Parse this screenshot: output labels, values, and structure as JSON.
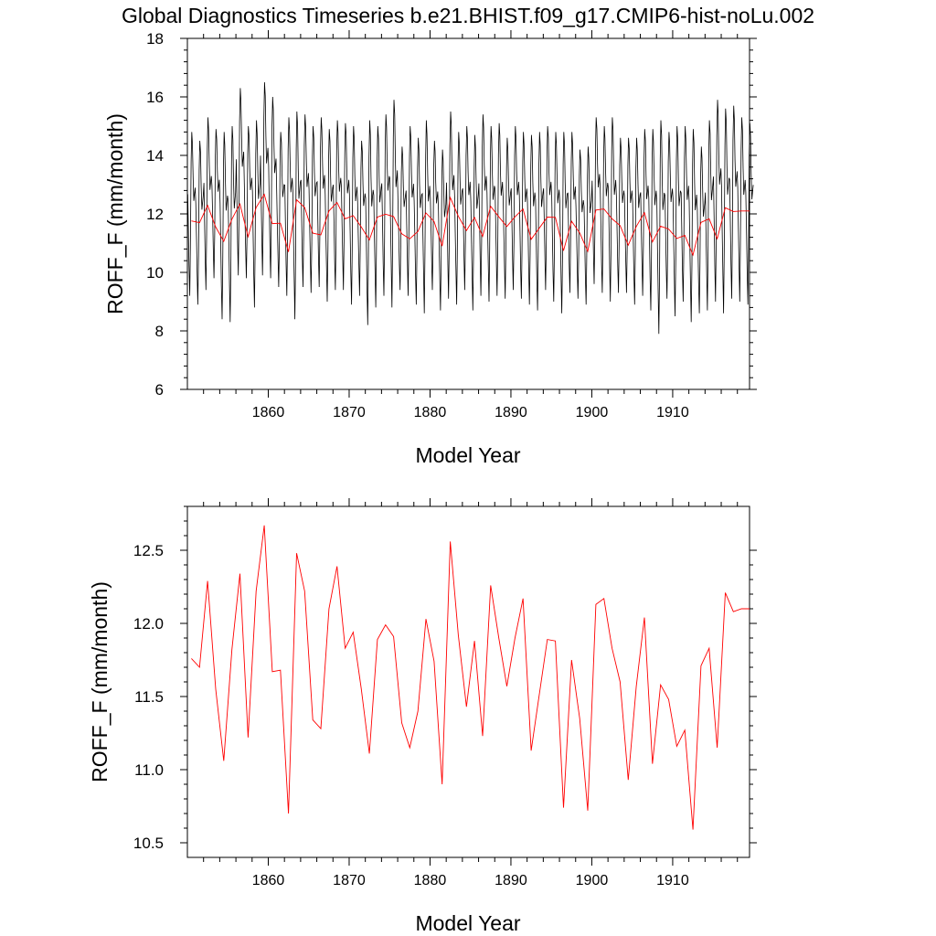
{
  "title": "Global Diagnostics Timeseries b.e21.BHIST.f09_g17.CMIP6-hist-noLu.002",
  "colors": {
    "monthly": "#000000",
    "annual": "#ff0000",
    "frame": "#000000"
  },
  "chart_data": [
    {
      "type": "line",
      "xlabel": "Model Year",
      "ylabel": "ROFF_F (mm/month)",
      "xlim": [
        1850,
        1919.5
      ],
      "ylim": [
        6,
        18
      ],
      "xticks": [
        1860,
        1870,
        1880,
        1890,
        1900,
        1910
      ],
      "yticks": [
        6,
        8,
        10,
        12,
        14,
        16,
        18
      ],
      "ytick_labels": [
        "6",
        "8",
        "10",
        "12",
        "14",
        "16",
        "18"
      ],
      "grid": false,
      "series": [
        {
          "style": "monthly",
          "years": [
            1850,
            1851,
            1852,
            1853,
            1854,
            1855,
            1856,
            1857,
            1858,
            1859,
            1860,
            1861,
            1862,
            1863,
            1864,
            1865,
            1866,
            1867,
            1868,
            1869,
            1870,
            1871,
            1872,
            1873,
            1874,
            1875,
            1876,
            1877,
            1878,
            1879,
            1880,
            1881,
            1882,
            1883,
            1884,
            1885,
            1886,
            1887,
            1888,
            1889,
            1890,
            1891,
            1892,
            1893,
            1894,
            1895,
            1896,
            1897,
            1898,
            1899,
            1900,
            1901,
            1902,
            1903,
            1904,
            1905,
            1906,
            1907,
            1908,
            1909,
            1910,
            1911,
            1912,
            1913,
            1914,
            1915,
            1916,
            1917,
            1918,
            1919
          ],
          "annual_max": [
            14.8,
            14.5,
            15.3,
            14.9,
            14.8,
            15.0,
            16.3,
            15.0,
            15.2,
            16.5,
            16.0,
            14.8,
            15.3,
            15.5,
            15.4,
            15.0,
            15.3,
            14.9,
            15.2,
            15.1,
            15.0,
            14.5,
            15.2,
            15.0,
            15.4,
            15.9,
            14.3,
            15.0,
            14.6,
            15.2,
            14.5,
            14.2,
            15.5,
            14.8,
            15.0,
            14.7,
            15.4,
            15.0,
            15.1,
            14.6,
            15.0,
            14.8,
            14.7,
            14.8,
            15.0,
            14.8,
            14.8,
            14.8,
            14.2,
            14.3,
            15.3,
            15.0,
            15.3,
            14.6,
            14.6,
            14.6,
            14.9,
            14.9,
            15.2,
            14.8,
            15.0,
            15.0,
            14.9,
            14.3,
            15.2,
            15.9,
            15.6,
            15.7,
            15.3,
            15.1
          ],
          "annual_min": [
            9.2,
            8.9,
            9.4,
            9.8,
            8.4,
            8.3,
            9.9,
            9.8,
            8.8,
            9.9,
            9.8,
            9.5,
            9.2,
            8.4,
            9.5,
            9.3,
            9.5,
            9.0,
            9.4,
            9.4,
            8.9,
            9.2,
            8.2,
            8.8,
            9.2,
            8.8,
            9.4,
            9.2,
            8.9,
            8.6,
            9.4,
            8.7,
            9.1,
            8.9,
            9.4,
            8.7,
            9.2,
            9.0,
            9.2,
            9.1,
            9.4,
            9.1,
            8.9,
            8.7,
            9.4,
            9.0,
            8.6,
            9.3,
            9.1,
            8.9,
            9.6,
            9.3,
            9.0,
            9.3,
            9.3,
            8.9,
            9.2,
            8.7,
            7.9,
            9.1,
            8.5,
            9.0,
            8.3,
            8.6,
            8.7,
            9.0,
            8.6,
            9.1,
            9.0,
            8.9
          ]
        },
        {
          "style": "annual",
          "x": [
            1850.5,
            1851.5,
            1852.5,
            1853.5,
            1854.5,
            1855.5,
            1856.5,
            1857.5,
            1858.5,
            1859.5,
            1860.5,
            1861.5,
            1862.5,
            1863.5,
            1864.5,
            1865.5,
            1866.5,
            1867.5,
            1868.5,
            1869.5,
            1870.5,
            1871.5,
            1872.5,
            1873.5,
            1874.5,
            1875.5,
            1876.5,
            1877.5,
            1878.5,
            1879.5,
            1880.5,
            1881.5,
            1882.5,
            1883.5,
            1884.5,
            1885.5,
            1886.5,
            1887.5,
            1888.5,
            1889.5,
            1890.5,
            1891.5,
            1892.5,
            1893.5,
            1894.5,
            1895.5,
            1896.5,
            1897.5,
            1898.5,
            1899.5,
            1900.5,
            1901.5,
            1902.5,
            1903.5,
            1904.5,
            1905.5,
            1906.5,
            1907.5,
            1908.5,
            1909.5,
            1910.5,
            1911.5,
            1912.5,
            1913.5,
            1914.5,
            1915.5,
            1916.5,
            1917.5,
            1918.5,
            1919.5
          ],
          "values": [
            11.76,
            11.7,
            12.29,
            11.55,
            11.06,
            11.82,
            12.34,
            11.22,
            12.22,
            12.67,
            11.67,
            11.68,
            10.7,
            12.48,
            12.22,
            11.34,
            11.28,
            12.1,
            12.39,
            11.83,
            11.94,
            11.55,
            11.11,
            11.89,
            11.99,
            11.91,
            11.32,
            11.15,
            11.4,
            12.03,
            11.74,
            10.9,
            12.56,
            11.92,
            11.43,
            11.88,
            11.23,
            12.26,
            11.9,
            11.57,
            11.9,
            12.17,
            11.13,
            11.51,
            11.89,
            11.88,
            10.74,
            11.75,
            11.35,
            10.72,
            12.13,
            12.17,
            11.83,
            11.6,
            10.93,
            11.57,
            12.04,
            11.04,
            11.58,
            11.48,
            11.16,
            11.27,
            10.59,
            11.71,
            11.83,
            11.15,
            12.21,
            12.08,
            12.1,
            12.1
          ]
        }
      ]
    },
    {
      "type": "line",
      "xlabel": "Model Year",
      "ylabel": "ROFF_F (mm/month)",
      "xlim": [
        1850,
        1919.5
      ],
      "ylim": [
        10.4,
        12.8
      ],
      "xticks": [
        1860,
        1870,
        1880,
        1890,
        1900,
        1910
      ],
      "yticks": [
        10.5,
        11.0,
        11.5,
        12.0,
        12.5
      ],
      "ytick_labels": [
        "10.5",
        "11.0",
        "11.5",
        "12.0",
        "12.5"
      ],
      "grid": false,
      "series": [
        {
          "style": "annual",
          "x": [
            1850.5,
            1851.5,
            1852.5,
            1853.5,
            1854.5,
            1855.5,
            1856.5,
            1857.5,
            1858.5,
            1859.5,
            1860.5,
            1861.5,
            1862.5,
            1863.5,
            1864.5,
            1865.5,
            1866.5,
            1867.5,
            1868.5,
            1869.5,
            1870.5,
            1871.5,
            1872.5,
            1873.5,
            1874.5,
            1875.5,
            1876.5,
            1877.5,
            1878.5,
            1879.5,
            1880.5,
            1881.5,
            1882.5,
            1883.5,
            1884.5,
            1885.5,
            1886.5,
            1887.5,
            1888.5,
            1889.5,
            1890.5,
            1891.5,
            1892.5,
            1893.5,
            1894.5,
            1895.5,
            1896.5,
            1897.5,
            1898.5,
            1899.5,
            1900.5,
            1901.5,
            1902.5,
            1903.5,
            1904.5,
            1905.5,
            1906.5,
            1907.5,
            1908.5,
            1909.5,
            1910.5,
            1911.5,
            1912.5,
            1913.5,
            1914.5,
            1915.5,
            1916.5,
            1917.5,
            1918.5,
            1919.5
          ],
          "values": [
            11.76,
            11.7,
            12.29,
            11.55,
            11.06,
            11.82,
            12.34,
            11.22,
            12.22,
            12.67,
            11.67,
            11.68,
            10.7,
            12.48,
            12.22,
            11.34,
            11.28,
            12.1,
            12.39,
            11.83,
            11.94,
            11.55,
            11.11,
            11.89,
            11.99,
            11.91,
            11.32,
            11.15,
            11.4,
            12.03,
            11.74,
            10.9,
            12.56,
            11.92,
            11.43,
            11.88,
            11.23,
            12.26,
            11.9,
            11.57,
            11.9,
            12.17,
            11.13,
            11.51,
            11.89,
            11.88,
            10.74,
            11.75,
            11.35,
            10.72,
            12.13,
            12.17,
            11.83,
            11.6,
            10.93,
            11.57,
            12.04,
            11.04,
            11.58,
            11.48,
            11.16,
            11.27,
            10.59,
            11.71,
            11.83,
            11.15,
            12.21,
            12.08,
            12.1,
            12.1
          ]
        }
      ]
    }
  ]
}
